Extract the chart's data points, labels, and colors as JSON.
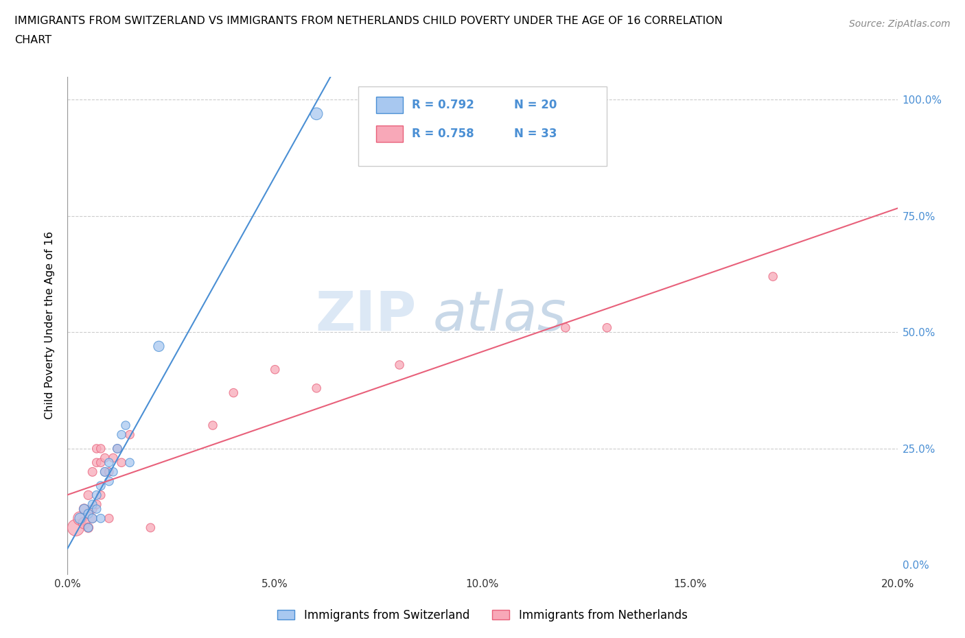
{
  "title": "IMMIGRANTS FROM SWITZERLAND VS IMMIGRANTS FROM NETHERLANDS CHILD POVERTY UNDER THE AGE OF 16 CORRELATION\nCHART",
  "source": "Source: ZipAtlas.com",
  "ylabel": "Child Poverty Under the Age of 16",
  "xlim": [
    0.0,
    0.2
  ],
  "ylim": [
    -0.02,
    1.05
  ],
  "yticks": [
    0.0,
    0.25,
    0.5,
    0.75,
    1.0
  ],
  "ytick_labels": [
    "0.0%",
    "25.0%",
    "50.0%",
    "75.0%",
    "100.0%"
  ],
  "xticks": [
    0.0,
    0.05,
    0.1,
    0.15,
    0.2
  ],
  "xtick_labels": [
    "0.0%",
    "5.0%",
    "10.0%",
    "15.0%",
    "20.0%"
  ],
  "R_swiss": 0.792,
  "N_swiss": 20,
  "R_netherlands": 0.758,
  "N_netherlands": 33,
  "swiss_color": "#a8c8f0",
  "netherlands_color": "#f8a8b8",
  "swiss_line_color": "#4a8fd4",
  "netherlands_line_color": "#e8607a",
  "watermark_color": "#dce8f5",
  "swiss_scatter": [
    [
      0.003,
      0.1
    ],
    [
      0.004,
      0.12
    ],
    [
      0.005,
      0.08
    ],
    [
      0.005,
      0.11
    ],
    [
      0.006,
      0.1
    ],
    [
      0.006,
      0.13
    ],
    [
      0.007,
      0.12
    ],
    [
      0.007,
      0.15
    ],
    [
      0.008,
      0.1
    ],
    [
      0.008,
      0.17
    ],
    [
      0.009,
      0.2
    ],
    [
      0.01,
      0.18
    ],
    [
      0.01,
      0.22
    ],
    [
      0.011,
      0.2
    ],
    [
      0.012,
      0.25
    ],
    [
      0.013,
      0.28
    ],
    [
      0.014,
      0.3
    ],
    [
      0.015,
      0.22
    ],
    [
      0.022,
      0.47
    ],
    [
      0.06,
      0.97
    ]
  ],
  "netherlands_scatter": [
    [
      0.002,
      0.08
    ],
    [
      0.003,
      0.1
    ],
    [
      0.004,
      0.09
    ],
    [
      0.004,
      0.12
    ],
    [
      0.005,
      0.08
    ],
    [
      0.005,
      0.11
    ],
    [
      0.005,
      0.15
    ],
    [
      0.006,
      0.1
    ],
    [
      0.006,
      0.12
    ],
    [
      0.006,
      0.2
    ],
    [
      0.007,
      0.13
    ],
    [
      0.007,
      0.22
    ],
    [
      0.007,
      0.25
    ],
    [
      0.008,
      0.15
    ],
    [
      0.008,
      0.22
    ],
    [
      0.008,
      0.25
    ],
    [
      0.009,
      0.2
    ],
    [
      0.009,
      0.23
    ],
    [
      0.01,
      0.1
    ],
    [
      0.01,
      0.2
    ],
    [
      0.011,
      0.23
    ],
    [
      0.012,
      0.25
    ],
    [
      0.013,
      0.22
    ],
    [
      0.015,
      0.28
    ],
    [
      0.02,
      0.08
    ],
    [
      0.035,
      0.3
    ],
    [
      0.04,
      0.37
    ],
    [
      0.05,
      0.42
    ],
    [
      0.06,
      0.38
    ],
    [
      0.08,
      0.43
    ],
    [
      0.12,
      0.51
    ],
    [
      0.13,
      0.51
    ],
    [
      0.17,
      0.62
    ]
  ],
  "swiss_sizes": [
    120,
    100,
    80,
    90,
    90,
    85,
    80,
    85,
    80,
    85,
    90,
    85,
    80,
    80,
    85,
    80,
    80,
    80,
    120,
    160
  ],
  "netherlands_sizes": [
    300,
    200,
    150,
    110,
    100,
    90,
    90,
    85,
    85,
    85,
    85,
    80,
    80,
    80,
    80,
    80,
    80,
    80,
    80,
    80,
    80,
    80,
    80,
    80,
    80,
    80,
    80,
    80,
    80,
    80,
    80,
    80,
    80
  ]
}
